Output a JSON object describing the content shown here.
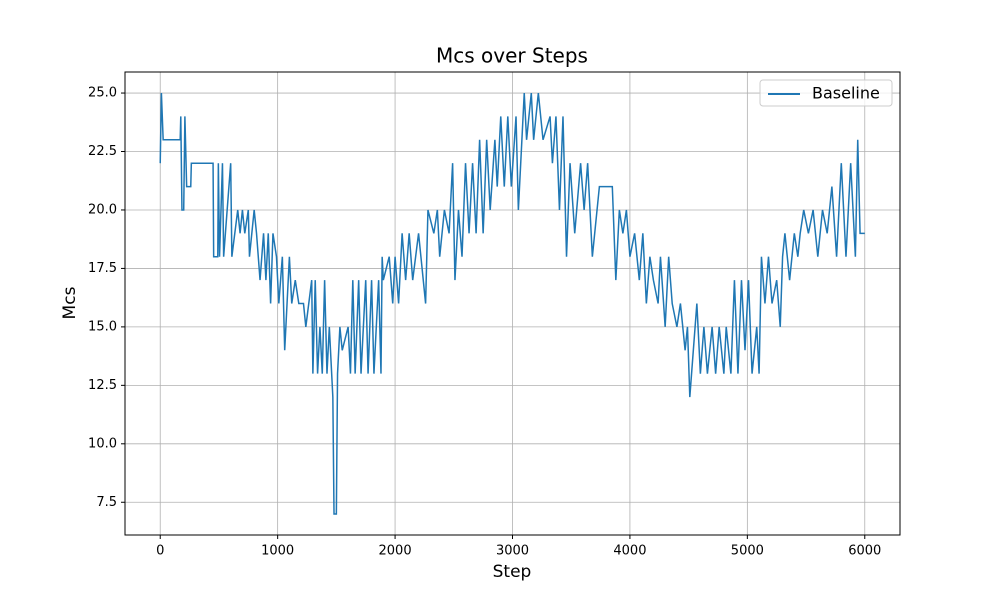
{
  "chart_data": {
    "type": "line",
    "title": "Mcs over Steps",
    "x_label": "Step",
    "y_label": "Mcs",
    "x": [
      0,
      10,
      25,
      170,
      175,
      185,
      200,
      210,
      225,
      260,
      265,
      450,
      455,
      490,
      495,
      505,
      530,
      540,
      600,
      610,
      660,
      680,
      700,
      720,
      750,
      760,
      800,
      820,
      850,
      880,
      900,
      920,
      940,
      960,
      990,
      1010,
      1040,
      1060,
      1080,
      1100,
      1120,
      1150,
      1180,
      1220,
      1240,
      1290,
      1300,
      1320,
      1340,
      1360,
      1380,
      1400,
      1420,
      1440,
      1470,
      1480,
      1500,
      1510,
      1530,
      1550,
      1600,
      1620,
      1640,
      1660,
      1690,
      1710,
      1750,
      1770,
      1800,
      1820,
      1860,
      1880,
      1890,
      1900,
      1950,
      1980,
      2000,
      2030,
      2060,
      2090,
      2120,
      2150,
      2200,
      2220,
      2260,
      2280,
      2330,
      2360,
      2380,
      2420,
      2460,
      2490,
      2510,
      2540,
      2570,
      2600,
      2630,
      2660,
      2690,
      2720,
      2750,
      2780,
      2810,
      2850,
      2870,
      2900,
      2930,
      2960,
      2990,
      3030,
      3050,
      3080,
      3100,
      3120,
      3160,
      3180,
      3220,
      3260,
      3320,
      3340,
      3370,
      3400,
      3430,
      3460,
      3490,
      3530,
      3580,
      3610,
      3640,
      3680,
      3740,
      3800,
      3850,
      3880,
      3910,
      3940,
      3970,
      4000,
      4040,
      4080,
      4110,
      4140,
      4170,
      4200,
      4240,
      4260,
      4300,
      4330,
      4360,
      4400,
      4430,
      4470,
      4490,
      4510,
      4540,
      4570,
      4600,
      4630,
      4660,
      4700,
      4730,
      4760,
      4800,
      4820,
      4860,
      4890,
      4920,
      4950,
      4980,
      5010,
      5040,
      5080,
      5100,
      5120,
      5150,
      5180,
      5210,
      5250,
      5280,
      5300,
      5320,
      5360,
      5400,
      5430,
      5450,
      5480,
      5520,
      5560,
      5600,
      5640,
      5680,
      5720,
      5760,
      5800,
      5840,
      5880,
      5920,
      5940,
      5960,
      6000
    ],
    "series": [
      {
        "name": "Baseline",
        "color": "#1f77b4",
        "values": [
          22,
          25,
          23,
          23,
          24,
          20,
          20,
          24,
          21,
          21,
          22,
          22,
          18,
          18,
          22,
          18,
          22,
          18,
          22,
          18,
          20,
          19,
          20,
          19,
          20,
          18,
          20,
          19,
          17,
          19,
          17,
          19,
          16,
          19,
          18,
          16,
          18,
          14,
          16,
          18,
          16,
          17,
          16,
          16,
          15,
          17,
          13,
          17,
          13,
          15,
          13,
          17,
          13,
          15,
          12,
          7,
          7,
          13,
          15,
          14,
          15,
          13,
          17,
          13,
          17,
          13,
          17,
          13,
          17,
          13,
          17,
          13,
          18,
          17,
          18,
          16,
          18,
          16,
          19,
          17,
          19,
          17,
          19,
          18,
          16,
          20,
          19,
          20,
          18,
          20,
          19,
          22,
          17,
          20,
          18,
          22,
          19,
          22,
          19,
          23,
          19,
          23,
          20,
          23,
          21,
          24,
          21,
          24,
          21,
          24,
          20,
          23,
          25,
          23,
          25,
          23,
          25,
          23,
          24,
          22,
          24,
          20,
          24,
          18,
          22,
          19,
          22,
          20,
          22,
          18,
          21,
          21,
          21,
          17,
          20,
          19,
          20,
          18,
          19,
          17,
          19,
          16,
          18,
          17,
          16,
          18,
          15,
          18,
          16,
          15,
          16,
          14,
          15,
          12,
          14,
          16,
          13,
          15,
          13,
          15,
          13,
          15,
          13,
          15,
          13,
          17,
          13,
          17,
          14,
          17,
          13,
          15,
          13,
          18,
          16,
          18,
          16,
          17,
          15,
          18,
          19,
          17,
          19,
          18,
          19,
          20,
          19,
          20,
          18,
          20,
          19,
          21,
          18,
          22,
          18,
          22,
          18,
          23,
          19,
          19
        ]
      }
    ],
    "xlim": [
      -300,
      6300
    ],
    "ylim": [
      6.1,
      25.9
    ],
    "xticks": [
      0,
      1000,
      2000,
      3000,
      4000,
      5000,
      6000
    ],
    "yticks": [
      7.5,
      {
        "value": 10,
        "label": "10.0"
      },
      12.5,
      {
        "value": 15,
        "label": "15.0"
      },
      17.5,
      {
        "value": 20,
        "label": "20.0"
      },
      22.5,
      {
        "value": 25,
        "label": "25.0"
      }
    ],
    "grid": true,
    "legend": "upper right"
  }
}
